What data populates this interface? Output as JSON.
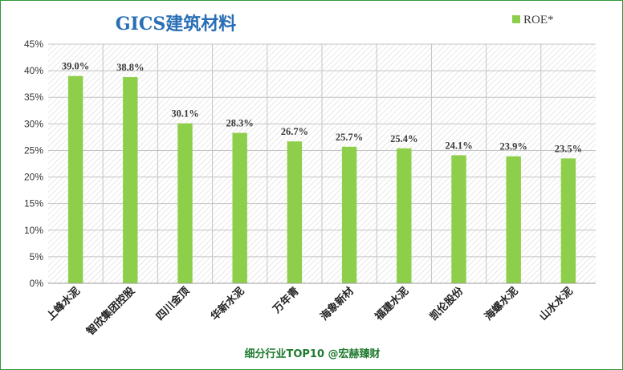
{
  "chart_data": {
    "type": "bar",
    "title": "GICS建筑材料",
    "categories": [
      "上峰水泥",
      "智欣集团控股",
      "四川金顶",
      "华新水泥",
      "万年青",
      "海象新材",
      "福建水泥",
      "凯伦股份",
      "海螺水泥",
      "山水水泥"
    ],
    "series": [
      {
        "name": "ROE*",
        "values": [
          39.0,
          38.8,
          30.1,
          28.3,
          26.7,
          25.7,
          25.4,
          24.1,
          23.9,
          23.5
        ],
        "labels": [
          "39.0%",
          "38.8%",
          "30.1%",
          "28.3%",
          "26.7%",
          "25.7%",
          "25.4%",
          "24.1%",
          "23.9%",
          "23.5%"
        ]
      }
    ],
    "ylim": [
      0,
      45
    ],
    "yticks": [
      0,
      5,
      10,
      15,
      20,
      25,
      30,
      35,
      40,
      45
    ],
    "ytick_labels": [
      "0%",
      "5%",
      "10%",
      "15%",
      "20%",
      "25%",
      "30%",
      "35%",
      "40%",
      "45%"
    ],
    "xlabel": "",
    "ylabel": "",
    "grid": true,
    "legend_position": "top-right",
    "bar_color": "#8dcf4a"
  },
  "footer_text": "细分行业TOP10 @宏赫臻财"
}
